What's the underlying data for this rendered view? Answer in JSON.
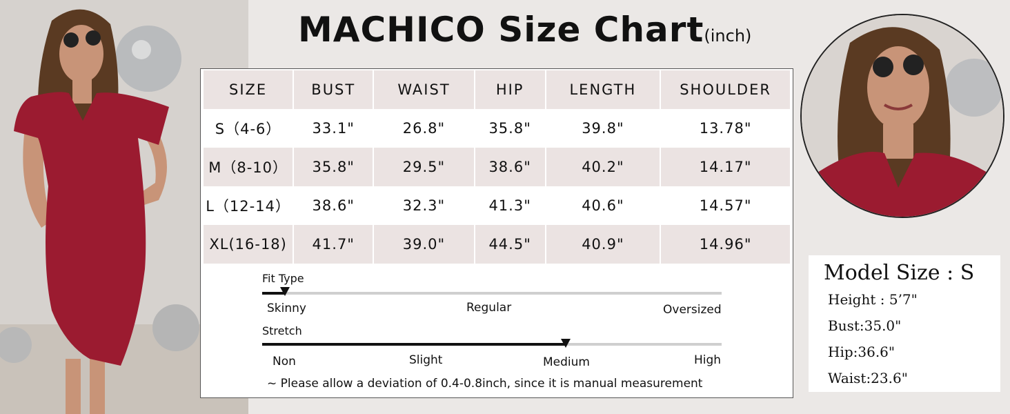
{
  "title": {
    "brand_heading": "MACHICO Size Chart",
    "unit": "(inch)"
  },
  "table": {
    "headers": [
      "SIZE",
      "BUST",
      "WAIST",
      "HIP",
      "LENGTH",
      "SHOULDER"
    ],
    "rows": [
      [
        "S（4-6）",
        "33.1\"",
        "26.8\"",
        "35.8\"",
        "39.8\"",
        "13.78\""
      ],
      [
        "M（8-10）",
        "35.8\"",
        "29.5\"",
        "38.6\"",
        "40.2\"",
        "14.17\""
      ],
      [
        "L（12-14）",
        "38.6\"",
        "32.3\"",
        "41.3\"",
        "40.6\"",
        "14.57\""
      ],
      [
        "XL(16-18)",
        "41.7\"",
        "39.0\"",
        "44.5\"",
        "40.9\"",
        "14.96\""
      ]
    ]
  },
  "fit_type": {
    "label": "Fit Type",
    "ticks": [
      "Skinny",
      "Regular",
      "Oversized"
    ],
    "level_fraction": 0.05
  },
  "stretch": {
    "label": "Stretch",
    "ticks": [
      "Non",
      "Slight",
      "Medium",
      "High"
    ],
    "level_fraction": 0.66
  },
  "note": "~ Please allow a deviation of 0.4-0.8inch, since it is manual measurement",
  "model": {
    "title": "Model Size : S",
    "height": "Height : 5’7\"",
    "bust": "Bust:35.0\"",
    "hip": "Hip:36.6\"",
    "waist": "Waist:23.6\""
  },
  "colors": {
    "dress": "#9b1b30",
    "table_shade": "#ebe3e2",
    "background": "#ebe8e6"
  },
  "icons": {
    "left_image": "model-photo",
    "right_image": "model-portrait-photo"
  }
}
